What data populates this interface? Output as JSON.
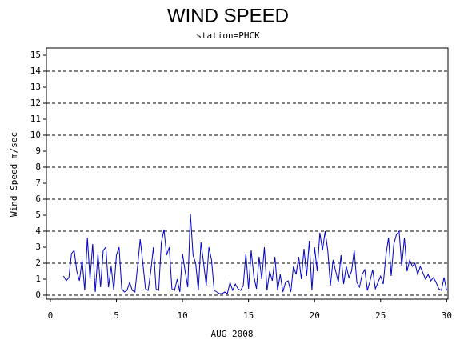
{
  "chart_data": {
    "type": "line",
    "title": "WIND SPEED",
    "subtitle": "station=PHCK",
    "x_label": "AUG 2008",
    "y_label": "Wind Speed m/sec",
    "xlim": [
      -0.3,
      30.1
    ],
    "xticks": [
      0,
      5,
      10,
      15,
      20,
      25,
      30
    ],
    "ylim": [
      -0.25,
      15.45
    ],
    "yticks": [
      0,
      1,
      2,
      3,
      4,
      5,
      6,
      7,
      8,
      9,
      10,
      11,
      12,
      13,
      14,
      15
    ],
    "grid_lines": [
      0,
      2,
      4,
      6,
      8,
      10,
      12,
      14
    ],
    "series": [
      {
        "color": "#0000cc",
        "x": [
          1,
          1.2,
          1.4,
          1.6,
          1.8,
          2,
          2.2,
          2.4,
          2.6,
          2.8,
          3,
          3.2,
          3.4,
          3.6,
          3.8,
          4,
          4.2,
          4.4,
          4.6,
          4.8,
          5,
          5.2,
          5.4,
          5.6,
          5.8,
          6,
          6.2,
          6.4,
          6.6,
          6.8,
          7,
          7.2,
          7.4,
          7.6,
          7.8,
          8,
          8.2,
          8.4,
          8.6,
          8.8,
          9,
          9.2,
          9.4,
          9.6,
          9.8,
          10,
          10.2,
          10.4,
          10.6,
          10.8,
          11,
          11.2,
          11.4,
          11.6,
          11.8,
          12,
          12.2,
          12.4,
          12.6,
          12.8,
          13,
          13.2,
          13.4,
          13.6,
          13.8,
          14,
          14.2,
          14.4,
          14.6,
          14.8,
          15,
          15.2,
          15.4,
          15.6,
          15.8,
          16,
          16.2,
          16.4,
          16.6,
          16.8,
          17,
          17.2,
          17.4,
          17.6,
          17.8,
          18,
          18.2,
          18.4,
          18.6,
          18.8,
          19,
          19.2,
          19.4,
          19.6,
          19.8,
          20,
          20.2,
          20.4,
          20.6,
          20.8,
          21,
          21.2,
          21.4,
          21.6,
          21.8,
          22,
          22.2,
          22.4,
          22.6,
          22.8,
          23,
          23.2,
          23.4,
          23.6,
          23.8,
          24,
          24.2,
          24.4,
          24.6,
          24.8,
          25,
          25.2,
          25.4,
          25.6,
          25.8,
          26,
          26.2,
          26.4,
          26.6,
          26.8,
          27,
          27.2,
          27.4,
          27.6,
          27.8,
          28,
          28.2,
          28.4,
          28.6,
          28.8,
          29,
          29.2,
          29.4,
          29.6,
          29.8,
          30
        ],
        "values": [
          1.2,
          0.9,
          1.1,
          2.6,
          2.8,
          1.5,
          0.9,
          2.2,
          0.3,
          3.6,
          1.0,
          3.2,
          0.2,
          2.6,
          0.5,
          2.8,
          3.0,
          0.5,
          1.8,
          0.3,
          2.5,
          3.0,
          0.4,
          0.2,
          0.3,
          0.8,
          0.3,
          0.2,
          1.8,
          3.5,
          2.0,
          0.4,
          0.3,
          1.5,
          3.0,
          0.4,
          0.3,
          3.3,
          4.1,
          2.5,
          3.0,
          0.4,
          0.3,
          1.0,
          0.2,
          2.6,
          1.5,
          0.5,
          5.1,
          2.5,
          2.0,
          0.3,
          3.3,
          2.0,
          0.6,
          3.0,
          2.2,
          0.3,
          0.2,
          0.1,
          0.1,
          0.2,
          0.1,
          0.8,
          0.3,
          0.7,
          0.4,
          0.3,
          0.6,
          2.6,
          0.4,
          2.8,
          1.2,
          0.4,
          2.4,
          1.0,
          3.0,
          0.3,
          1.5,
          0.9,
          2.4,
          0.3,
          1.3,
          0.2,
          0.8,
          0.9,
          0.2,
          1.8,
          1.3,
          2.4,
          1.0,
          2.9,
          1.2,
          3.4,
          0.3,
          3.0,
          1.5,
          3.9,
          2.8,
          4.0,
          2.8,
          0.6,
          2.2,
          1.5,
          0.8,
          2.5,
          0.7,
          1.8,
          1.1,
          1.5,
          2.8,
          0.8,
          0.5,
          1.3,
          1.6,
          0.3,
          0.9,
          1.6,
          0.4,
          0.8,
          1.2,
          0.7,
          2.5,
          3.6,
          1.2,
          3.2,
          3.8,
          4.0,
          1.8,
          3.6,
          1.5,
          2.2,
          1.8,
          2.0,
          1.3,
          1.8,
          1.4,
          1.0,
          1.3,
          0.9,
          1.1,
          0.8,
          0.4,
          0.3,
          1.1,
          0.3
        ]
      }
    ]
  }
}
